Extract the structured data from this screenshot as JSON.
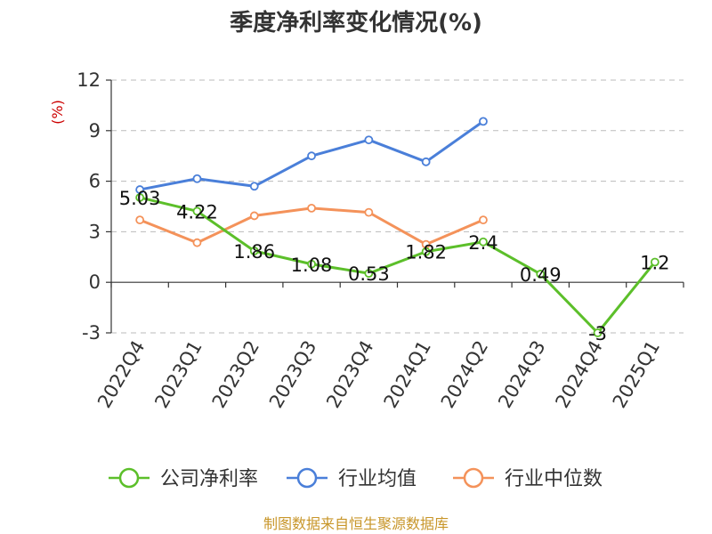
{
  "chart_data": {
    "type": "line",
    "title": "季度净利率变化情况(%)",
    "ylabel": "(%)",
    "categories": [
      "2022Q4",
      "2023Q1",
      "2023Q2",
      "2023Q3",
      "2023Q4",
      "2024Q1",
      "2024Q2",
      "2024Q3",
      "2024Q4",
      "2025Q1"
    ],
    "ylim": [
      -3,
      12
    ],
    "yticks": [
      -3,
      0,
      3,
      6,
      9,
      12
    ],
    "grid": true,
    "legend_position": "bottom",
    "series": [
      {
        "name": "公司净利率",
        "color": "#5cbf2a",
        "labeled": true,
        "values": [
          5.03,
          4.22,
          1.86,
          1.08,
          0.53,
          1.82,
          2.4,
          0.49,
          -3,
          1.2
        ],
        "labels": [
          "5.03",
          "4.22",
          "1.86",
          "1.08",
          "0.53",
          "1.82",
          "2.4",
          "0.49",
          "-3",
          "1.2"
        ]
      },
      {
        "name": "行业均值",
        "color": "#4a7fd9",
        "labeled": false,
        "values": [
          5.5,
          6.15,
          5.7,
          7.5,
          8.45,
          7.15,
          9.55,
          null,
          null,
          null
        ]
      },
      {
        "name": "行业中位数",
        "color": "#f4925a",
        "labeled": false,
        "values": [
          3.7,
          2.35,
          3.95,
          4.4,
          4.15,
          2.25,
          3.7,
          null,
          null,
          null
        ]
      }
    ]
  },
  "footer": {
    "source": "制图数据来自恒生聚源数据库"
  }
}
